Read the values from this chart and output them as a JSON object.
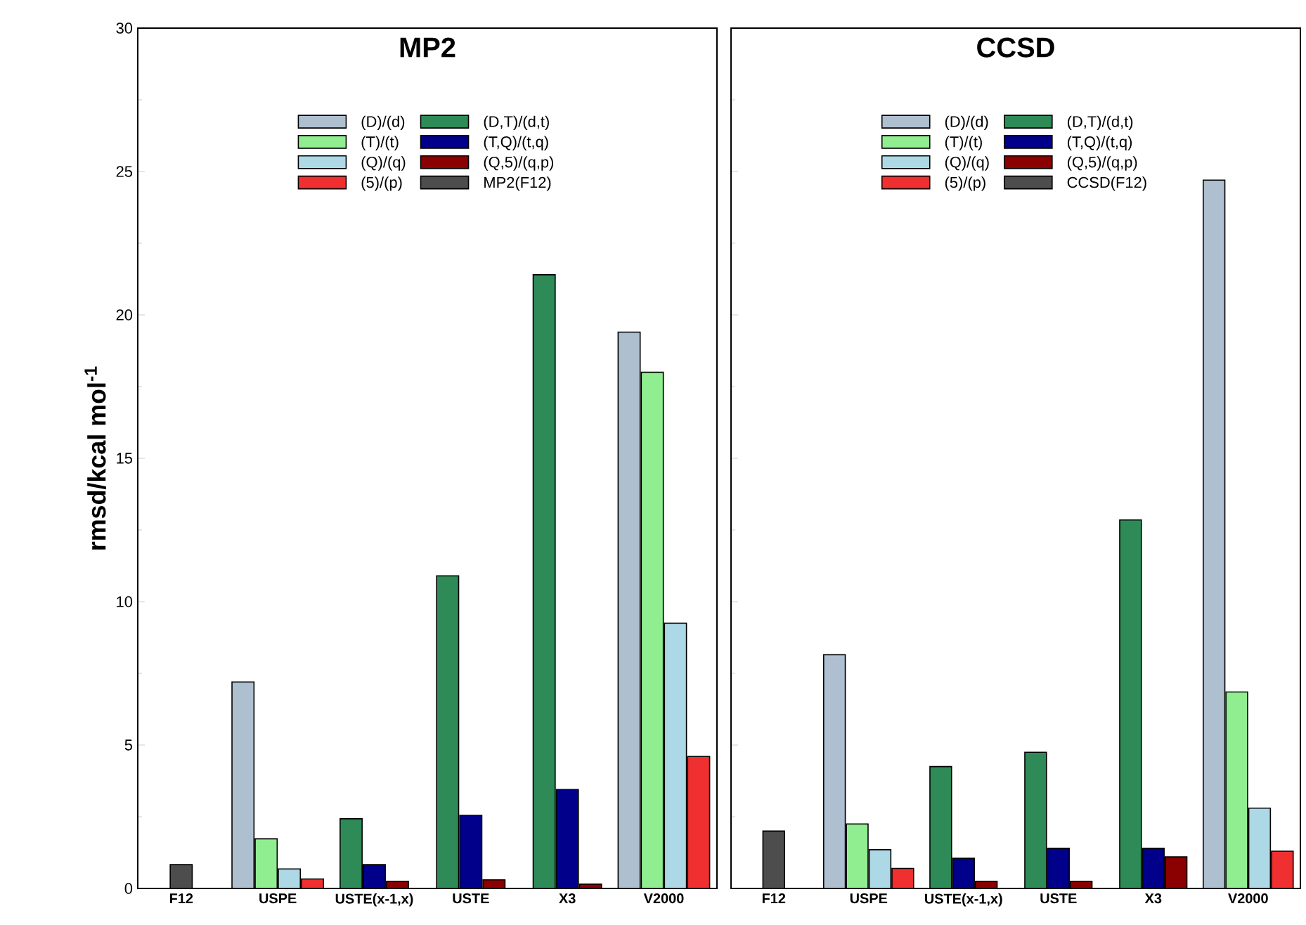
{
  "chart_data": [
    {
      "type": "bar",
      "title": "MP2",
      "ylabel": "rmsd/kcal mol$^{-1}$",
      "categories": [
        "F12",
        "USPE",
        "USTE(x-1,x)",
        "USTE",
        "X3",
        "V2000"
      ],
      "ylim": [
        0,
        30
      ],
      "yticks": [
        0,
        5,
        10,
        15,
        20,
        25,
        30
      ],
      "legend": "top",
      "grid": false,
      "series": [
        {
          "name": "(D)/(d)",
          "color": "#aebfcf",
          "values": [
            null,
            7.2,
            null,
            null,
            null,
            19.4
          ]
        },
        {
          "name": "(T)/(t)",
          "color": "#90ee90",
          "values": [
            null,
            1.73,
            null,
            null,
            null,
            18.0
          ]
        },
        {
          "name": "(Q)/(q)",
          "color": "#add8e6",
          "values": [
            null,
            0.68,
            null,
            null,
            null,
            9.25
          ]
        },
        {
          "name": "(5)/(p)",
          "color": "#f03030",
          "values": [
            null,
            0.33,
            null,
            null,
            null,
            4.6
          ]
        },
        {
          "name": "(D,T)/(d,t)",
          "color": "#2e8b57",
          "values": [
            null,
            null,
            2.43,
            10.9,
            21.4,
            null
          ]
        },
        {
          "name": "(T,Q)/(t,q)",
          "color": "#00008b",
          "values": [
            null,
            null,
            0.83,
            2.55,
            3.45,
            null
          ]
        },
        {
          "name": "(Q,5)/(q,p)",
          "color": "#8b0000",
          "values": [
            null,
            null,
            0.25,
            0.3,
            0.15,
            null
          ]
        },
        {
          "name": "MP2(F12)",
          "color": "#4d4d4d",
          "values": [
            0.83,
            null,
            null,
            null,
            null,
            null
          ]
        }
      ]
    },
    {
      "type": "bar",
      "title": "CCSD",
      "categories": [
        "F12",
        "USPE",
        "USTE(x-1,x)",
        "USTE",
        "X3",
        "V2000"
      ],
      "ylim": [
        0,
        30
      ],
      "yticks": [
        0,
        5,
        10,
        15,
        20,
        25,
        30
      ],
      "tick_labels": "x",
      "legend": "top",
      "grid": false,
      "series": [
        {
          "name": "(D)/(d)",
          "color": "#aebfcf",
          "values": [
            null,
            8.15,
            null,
            null,
            null,
            24.7
          ]
        },
        {
          "name": "(T)/(t)",
          "color": "#90ee90",
          "values": [
            null,
            2.25,
            null,
            null,
            null,
            6.85
          ]
        },
        {
          "name": "(Q)/(q)",
          "color": "#add8e6",
          "values": [
            null,
            1.35,
            null,
            null,
            null,
            2.8
          ]
        },
        {
          "name": "(5)/(p)",
          "color": "#f03030",
          "values": [
            null,
            0.7,
            null,
            null,
            null,
            1.3
          ]
        },
        {
          "name": "(D,T)/(d,t)",
          "color": "#2e8b57",
          "values": [
            null,
            null,
            4.25,
            4.75,
            12.85,
            null
          ]
        },
        {
          "name": "(T,Q)/(t,q)",
          "color": "#00008b",
          "values": [
            null,
            null,
            1.05,
            1.4,
            1.4,
            null
          ]
        },
        {
          "name": "(Q,5)/(q,p)",
          "color": "#8b0000",
          "values": [
            null,
            null,
            0.25,
            0.25,
            1.1,
            null
          ]
        },
        {
          "name": "CCSD(F12)",
          "color": "#4d4d4d",
          "values": [
            2.0,
            null,
            null,
            null,
            null,
            null
          ]
        }
      ]
    }
  ]
}
